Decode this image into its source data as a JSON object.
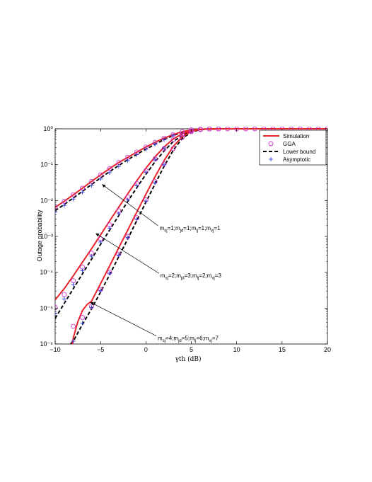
{
  "chart_data": {
    "type": "line",
    "xlabel": "γth (dB)",
    "ylabel": "Outage probability",
    "xlim": [
      -10,
      20
    ],
    "ylim": [
      1e-06,
      1
    ],
    "yscale": "log",
    "grid": false,
    "legend_position": "top-right",
    "xticks": [
      "−10",
      "−5",
      "0",
      "5",
      "10",
      "15",
      "20"
    ],
    "yticks": [
      "10⁻⁶",
      "10⁻⁵",
      "10⁻⁴",
      "10⁻³",
      "10⁻²",
      "10⁻¹",
      "10⁰"
    ],
    "legend": [
      {
        "label": "Simulation",
        "marker": "line",
        "color": "#e8232a"
      },
      {
        "label": "GGA",
        "marker": "circle",
        "color": "#cc33cc"
      },
      {
        "label": "Lower bound",
        "marker": "dash",
        "color": "#000000"
      },
      {
        "label": "Asymptotic",
        "marker": "plus",
        "color": "#2a3fd6"
      }
    ],
    "annotations": [
      {
        "text": "msj=1;mjd=1;mlj=1;mvj=1",
        "arrow_to": [
          -4.8,
          0.028
        ],
        "label_at": [
          1.5,
          0.00165
        ]
      },
      {
        "text": "msj=2;mjd=3;mlj=2;mvj=3",
        "arrow_to": [
          -5.5,
          0.0012
        ],
        "label_at": [
          1.6,
          7.8e-05
        ]
      },
      {
        "text": "msj=4;mjd=5;mlj=6;mvj=7",
        "arrow_to": [
          -6.1,
          1.45e-05
        ],
        "label_at": [
          1.3,
          1.4e-06
        ]
      }
    ],
    "curves": [
      {
        "group": 1,
        "kind": "simulation",
        "x": [
          -10,
          -9,
          -8,
          -7,
          -6,
          -5,
          -4,
          -3,
          -2,
          -1,
          0,
          1,
          2,
          3,
          4,
          5,
          6,
          7,
          8,
          10,
          15,
          20
        ],
        "y": [
          0.0065,
          0.0095,
          0.0145,
          0.022,
          0.034,
          0.052,
          0.078,
          0.115,
          0.16,
          0.225,
          0.31,
          0.42,
          0.55,
          0.69,
          0.83,
          0.93,
          0.975,
          0.99,
          0.998,
          1,
          1,
          1
        ]
      },
      {
        "group": 1,
        "kind": "gga",
        "x": [
          -10,
          -9,
          -8,
          -7,
          -6,
          -5,
          -4,
          -3,
          -2,
          -1,
          0,
          1,
          2,
          3,
          4,
          5,
          6,
          7,
          8,
          9,
          10,
          11,
          12,
          13,
          14,
          15,
          16,
          17,
          18,
          19,
          20
        ],
        "y": [
          0.0065,
          0.0095,
          0.0145,
          0.022,
          0.034,
          0.052,
          0.078,
          0.115,
          0.16,
          0.225,
          0.31,
          0.42,
          0.55,
          0.69,
          0.83,
          0.93,
          0.975,
          0.99,
          0.998,
          1,
          1,
          1,
          1,
          1,
          1,
          1,
          1,
          1,
          1,
          1,
          1
        ]
      },
      {
        "group": 1,
        "kind": "lower_bound",
        "x": [
          -10,
          -9,
          -8,
          -7,
          -6,
          -5,
          -4,
          -3,
          -2,
          -1,
          0,
          1,
          2,
          3,
          4,
          5,
          6,
          7,
          8,
          10,
          15,
          20
        ],
        "y": [
          0.0052,
          0.0078,
          0.0118,
          0.018,
          0.028,
          0.043,
          0.064,
          0.095,
          0.138,
          0.195,
          0.27,
          0.37,
          0.5,
          0.65,
          0.8,
          0.92,
          0.97,
          0.99,
          0.998,
          1,
          1,
          1
        ]
      },
      {
        "group": 1,
        "kind": "asymptotic",
        "x": [
          -10,
          -9,
          -8,
          -7,
          -6,
          -5,
          -4,
          -3,
          -2,
          -1,
          0,
          1,
          2,
          3
        ],
        "y": [
          0.0048,
          0.0073,
          0.011,
          0.017,
          0.026,
          0.04,
          0.06,
          0.09,
          0.13,
          0.19,
          0.27,
          0.37,
          0.5,
          0.66
        ]
      },
      {
        "group": 2,
        "kind": "simulation",
        "x": [
          -10,
          -9,
          -8,
          -7,
          -6,
          -5,
          -4,
          -3,
          -2,
          -1,
          0,
          1,
          2,
          3,
          4,
          5,
          6,
          7,
          8
        ],
        "y": [
          1.7e-05,
          3.5e-05,
          8e-05,
          0.00019,
          0.00045,
          0.0011,
          0.0027,
          0.0065,
          0.0155,
          0.036,
          0.08,
          0.165,
          0.31,
          0.52,
          0.73,
          0.89,
          0.965,
          0.99,
          0.998
        ]
      },
      {
        "group": 2,
        "kind": "gga",
        "x": [
          -10,
          -9,
          -8,
          -7,
          -6,
          -5,
          -4,
          -3,
          -2,
          -1,
          0,
          1,
          2,
          3,
          4,
          5,
          6,
          7,
          8
        ],
        "y": [
          1.05e-05,
          2.4e-05,
          5.8e-05,
          0.00014,
          0.00034,
          0.00085,
          0.0021,
          0.0052,
          0.0125,
          0.03,
          0.068,
          0.145,
          0.28,
          0.49,
          0.71,
          0.88,
          0.96,
          0.99,
          0.998
        ]
      },
      {
        "group": 2,
        "kind": "lower_bound",
        "x": [
          -10,
          -9,
          -8,
          -7,
          -6,
          -5,
          -4,
          -3,
          -2,
          -1,
          0,
          1,
          2,
          3,
          4,
          5,
          6,
          7,
          8
        ],
        "y": [
          5.2e-06,
          1.35e-05,
          3.5e-05,
          9e-05,
          0.00023,
          0.0006,
          0.0015,
          0.0038,
          0.0095,
          0.023,
          0.054,
          0.12,
          0.24,
          0.44,
          0.66,
          0.85,
          0.95,
          0.985,
          0.997
        ]
      },
      {
        "group": 2,
        "kind": "asymptotic",
        "x": [
          -10,
          -9,
          -8,
          -7,
          -6,
          -5,
          -4,
          -3,
          -2,
          -1,
          0,
          1,
          2
        ],
        "y": [
          7.2e-06,
          1.8e-05,
          4.5e-05,
          0.00011,
          0.00028,
          0.0007,
          0.0017,
          0.0043,
          0.0105,
          0.026,
          0.062,
          0.14,
          0.29
        ]
      },
      {
        "group": 3,
        "kind": "simulation",
        "x": [
          -8.1,
          -8,
          -7.5,
          -7,
          -6.5,
          -6,
          -5,
          -4,
          -3,
          -2,
          -1,
          0,
          1,
          2,
          3,
          4,
          5,
          6,
          7,
          8
        ],
        "y": [
          1e-06,
          1.5e-06,
          4.2e-06,
          8.5e-06,
          1.25e-05,
          1.55e-05,
          4.8e-05,
          0.00015,
          0.00048,
          0.0015,
          0.0048,
          0.015,
          0.046,
          0.13,
          0.32,
          0.6,
          0.85,
          0.96,
          0.99,
          0.998
        ]
      },
      {
        "group": 3,
        "kind": "gga",
        "x": [
          -8,
          -7,
          -6,
          -5,
          -4,
          -3,
          -2,
          -1,
          0,
          1,
          2,
          3,
          4,
          5,
          6,
          7,
          8
        ],
        "y": [
          3.1e-06,
          5.5e-06,
          1.12e-05,
          3.3e-05,
          0.0001,
          0.00032,
          0.001,
          0.0033,
          0.0105,
          0.034,
          0.105,
          0.28,
          0.57,
          0.83,
          0.955,
          0.99,
          0.998
        ]
      },
      {
        "group": 3,
        "kind": "lower_bound",
        "x": [
          -8.3,
          -8,
          -7,
          -6,
          -5,
          -4,
          -3,
          -2,
          -1,
          0,
          1,
          2,
          3,
          4,
          5,
          6,
          7,
          8
        ],
        "y": [
          1e-06,
          1.2e-06,
          3.5e-06,
          9.5e-06,
          2.8e-05,
          8.5e-05,
          0.00027,
          0.00085,
          0.0028,
          0.009,
          0.029,
          0.09,
          0.25,
          0.54,
          0.81,
          0.95,
          0.988,
          0.997
        ]
      },
      {
        "group": 3,
        "kind": "asymptotic",
        "x": [
          -8,
          -7,
          -6,
          -5,
          -4,
          -3,
          -2,
          -1,
          0,
          1,
          2
        ],
        "y": [
          1.2e-06,
          3.8e-06,
          1.05e-05,
          3.1e-05,
          9.4e-05,
          0.0003,
          0.00093,
          0.003,
          0.0097,
          0.031,
          0.1
        ]
      }
    ]
  }
}
